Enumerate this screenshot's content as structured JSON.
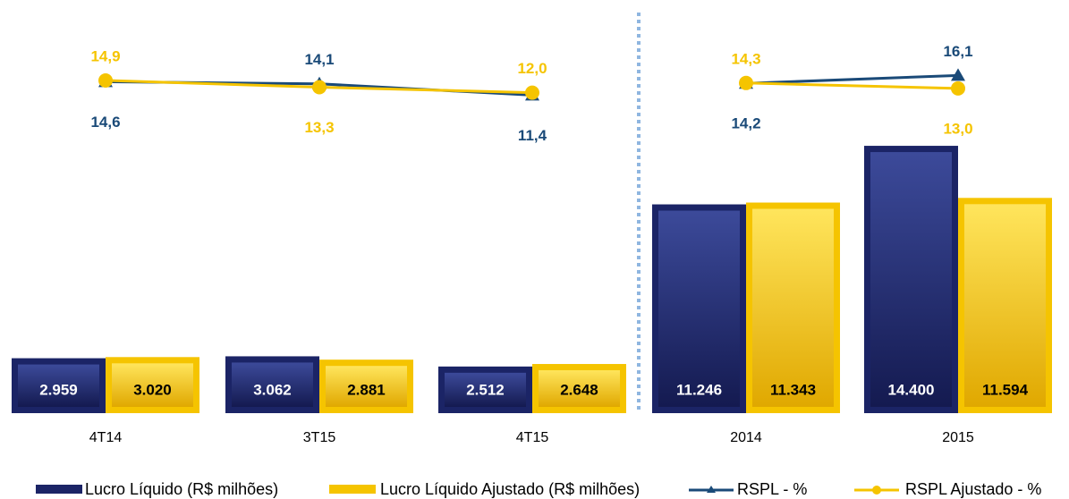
{
  "chart_data": {
    "type": "bar",
    "categories": [
      "4T14",
      "3T15",
      "4T15",
      "2014",
      "2015"
    ],
    "series": [
      {
        "name": "Lucro Líquido (R$ milhões)",
        "type": "bar",
        "color": "#1b2466",
        "values": [
          2959,
          3062,
          2512,
          11246,
          14400
        ],
        "value_labels": [
          "2.959",
          "3.062",
          "2.512",
          "11.246",
          "14.400"
        ]
      },
      {
        "name": "Lucro Líquido Ajustado (R$ milhões)",
        "type": "bar",
        "color": "#f5c400",
        "values": [
          3020,
          2881,
          2648,
          11343,
          11594
        ],
        "value_labels": [
          "3.020",
          "2.881",
          "2.648",
          "11.343",
          "11.594"
        ]
      },
      {
        "name": "RSPL - %",
        "type": "line",
        "marker": "triangle",
        "color": "#1a4a78",
        "values": [
          14.6,
          14.1,
          11.4,
          14.2,
          16.1
        ],
        "value_labels": [
          "14,6",
          "14,1",
          "11,4",
          "14,2",
          "16,1"
        ]
      },
      {
        "name": "RSPL Ajustado - %",
        "type": "line",
        "marker": "circle",
        "color": "#f5c400",
        "values": [
          14.9,
          13.3,
          12.0,
          14.3,
          13.0
        ],
        "value_labels": [
          "14,9",
          "13,3",
          "12,0",
          "14,3",
          "13,0"
        ]
      }
    ]
  }
}
